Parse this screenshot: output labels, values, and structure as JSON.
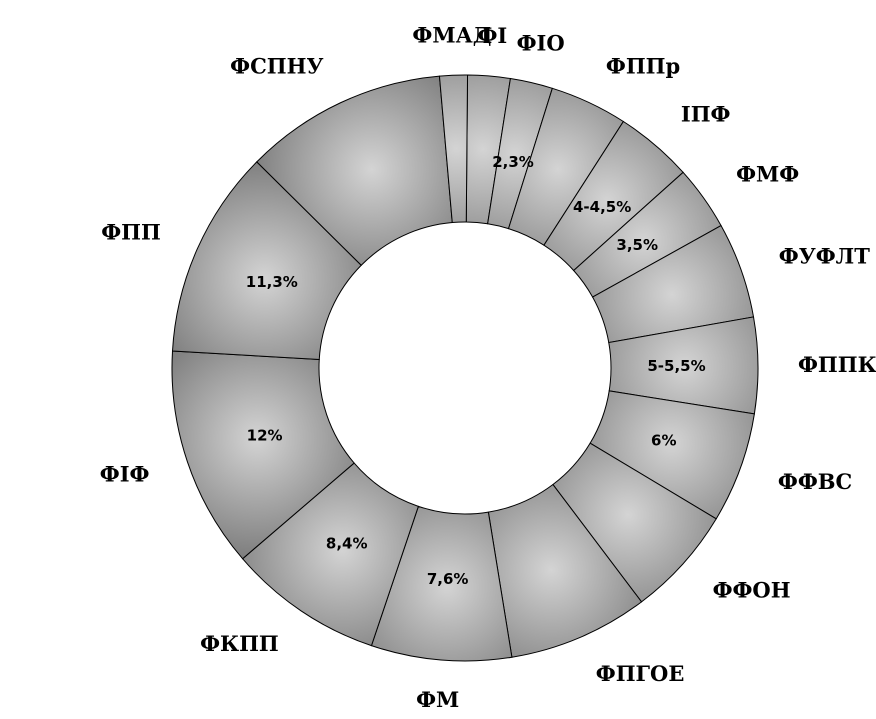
{
  "chart_data": {
    "type": "pie",
    "donut": true,
    "title": "",
    "categories": [
      "ФІ",
      "ФІО",
      "ФППр",
      "ІПФ",
      "ФМФ",
      "ФУФЛТ",
      "ФППК",
      "ФФВС",
      "ФФОН",
      "ФПГОЕ",
      "ФМ",
      "ФКПП",
      "ФІФ",
      "ФПП",
      "ФСПНУ",
      "ФМАД"
    ],
    "values": [
      2.3,
      2.3,
      4.2,
      4.2,
      3.5,
      5.2,
      5.2,
      6.0,
      6.0,
      7.6,
      7.6,
      8.4,
      12.0,
      11.3,
      11.0,
      1.5
    ],
    "value_labels": [
      "",
      "2,3%",
      "",
      "4-4,5%",
      "3,5%",
      "",
      "5-5,5%",
      "6%",
      "",
      "",
      "7,6%",
      "8,4%",
      "12%",
      "11,3%",
      "",
      ""
    ],
    "legend": "none",
    "colors": {
      "fill_light": "#d4d4d4",
      "fill_dark": "#757575",
      "border": "#000000",
      "background": "#ffffff"
    }
  }
}
